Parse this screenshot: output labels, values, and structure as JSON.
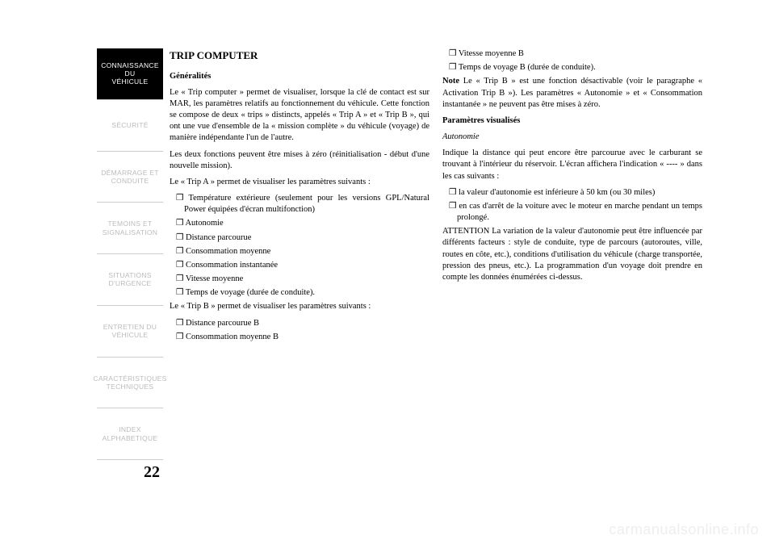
{
  "sidebar": {
    "items": [
      {
        "label": "CONNAISSANCE DU\nVÉHICULE",
        "active": true
      },
      {
        "label": "SÉCURITÉ",
        "active": false
      },
      {
        "label": "DÉMARRAGE ET\nCONDUITE",
        "active": false
      },
      {
        "label": "TEMOINS ET\nSIGNALISATION",
        "active": false
      },
      {
        "label": "SITUATIONS\nD'URGENCE",
        "active": false
      },
      {
        "label": "ENTRETIEN DU\nVÉHICULE",
        "active": false
      },
      {
        "label": "CARACTÉRISTIQUES\nTECHNIQUES",
        "active": false
      },
      {
        "label": "INDEX\nALPHABETIQUE",
        "active": false
      }
    ]
  },
  "page_number": "22",
  "col1": {
    "title": "TRIP COMPUTER",
    "h_gen": "Généralités",
    "p1": "Le « Trip computer » permet de visualiser, lorsque la clé de contact est sur MAR, les paramètres relatifs au fonctionnement du véhicule. Cette fonction se compose de deux « trips » distincts, appelés « Trip A » et « Trip B », qui ont une vue d'ensemble de la « mission complète » du véhicule (voyage) de manière indépendante l'un de l'autre.",
    "p2": "Les deux fonctions peuvent être mises à zéro (réinitialisation - début d'une nouvelle mission).",
    "p3": "Le « Trip A » permet de visualiser les paramètres suivants :",
    "b1": "Température extérieure (seulement pour les versions GPL/Natural Power équipées d'écran multifonction)",
    "b2": "Autonomie",
    "b3": "Distance parcourue",
    "b4": "Consommation moyenne",
    "b5": "Consommation instantanée",
    "b6": "Vitesse moyenne",
    "b7": "Temps de voyage (durée de conduite).",
    "p4": "Le « Trip B » permet de visualiser les paramètres suivants :",
    "b8": "Distance parcourue B",
    "b9": "Consommation moyenne B"
  },
  "col2": {
    "b1": "Vitesse moyenne B",
    "b2": "Temps de voyage B (durée de conduite).",
    "note_label": "Note",
    "note_text": " Le « Trip B » est une fonction désactivable (voir le paragraphe « Activation Trip B »). Les paramètres « Autonomie » et « Consommation instantanée » ne peuvent pas être mises à zéro.",
    "h_param": "Paramètres visualisés",
    "h_auto": "Autonomie",
    "p1": "Indique la distance qui peut encore être parcourue avec le carburant se trouvant à l'intérieur du réservoir. L'écran affichera l'indication « ---- » dans les cas suivants :",
    "b3": "la valeur d'autonomie est inférieure à 50 km (ou 30 miles)",
    "b4": "en cas d'arrêt de la voiture avec le moteur en marche pendant un temps prolongé.",
    "p2": "ATTENTION La variation de la valeur d'autonomie peut être influencée par différents facteurs : style de conduite, type de parcours (autoroutes, ville, routes en côte, etc.), conditions d'utilisation du véhicule (charge transportée, pression des pneus, etc.). La programmation d'un voyage doit prendre en compte les données énumérées ci-dessus."
  },
  "watermark": "carmanualsonline.info"
}
